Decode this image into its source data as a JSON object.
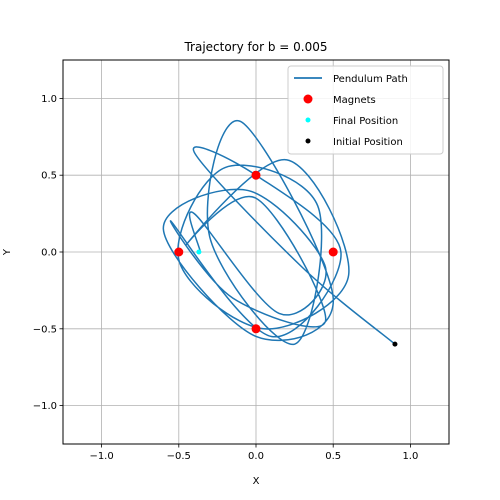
{
  "chart_data": {
    "type": "line",
    "title": "Trajectory for b = 0.005",
    "xlabel": "X",
    "ylabel": "Y",
    "xlim": [
      -1.25,
      1.25
    ],
    "ylim": [
      -1.25,
      1.25
    ],
    "xticks": [
      -1.0,
      -0.5,
      0.0,
      0.5,
      1.0
    ],
    "yticks": [
      -1.0,
      -0.5,
      0.0,
      0.5,
      1.0
    ],
    "xtick_labels": [
      "−1.0",
      "−0.5",
      "0.0",
      "0.5",
      "1.0"
    ],
    "ytick_labels": [
      "−1.0",
      "−0.5",
      "0.0",
      "0.5",
      "1.0"
    ],
    "grid": true,
    "legend_placement": "top-right",
    "series": [
      {
        "name": "Pendulum Path",
        "kind": "line",
        "color": "#1f77b4",
        "x": [
          0.9,
          0.3,
          -0.4,
          0.0,
          0.55,
          0.1,
          -0.55,
          -0.15,
          0.45,
          0.0,
          -0.45,
          0.2,
          0.6,
          0.05,
          -0.5,
          -0.2,
          0.4,
          0.25,
          -0.3,
          -0.1,
          0.5,
          0.0,
          -0.6,
          -0.05,
          0.45,
          0.15,
          -0.4,
          -0.36
        ],
        "y": [
          -0.6,
          -0.1,
          0.65,
          0.5,
          0.0,
          -0.55,
          0.2,
          -0.3,
          -0.45,
          0.35,
          0.05,
          0.6,
          -0.15,
          -0.5,
          -0.05,
          0.55,
          0.3,
          -0.6,
          0.1,
          0.85,
          -0.3,
          -0.55,
          0.15,
          0.4,
          -0.1,
          -0.4,
          0.25,
          0.0
        ]
      },
      {
        "name": "Magnets",
        "kind": "scatter",
        "color": "#ff0000",
        "x": [
          0.0,
          0.5,
          -0.5,
          0.0
        ],
        "y": [
          0.5,
          0.0,
          0.0,
          -0.5
        ]
      },
      {
        "name": "Final Position",
        "kind": "scatter",
        "color": "#00ffff",
        "x": [
          -0.37
        ],
        "y": [
          0.0
        ]
      },
      {
        "name": "Initial Position",
        "kind": "scatter",
        "color": "#000000",
        "x": [
          0.9
        ],
        "y": [
          -0.6
        ]
      }
    ]
  }
}
